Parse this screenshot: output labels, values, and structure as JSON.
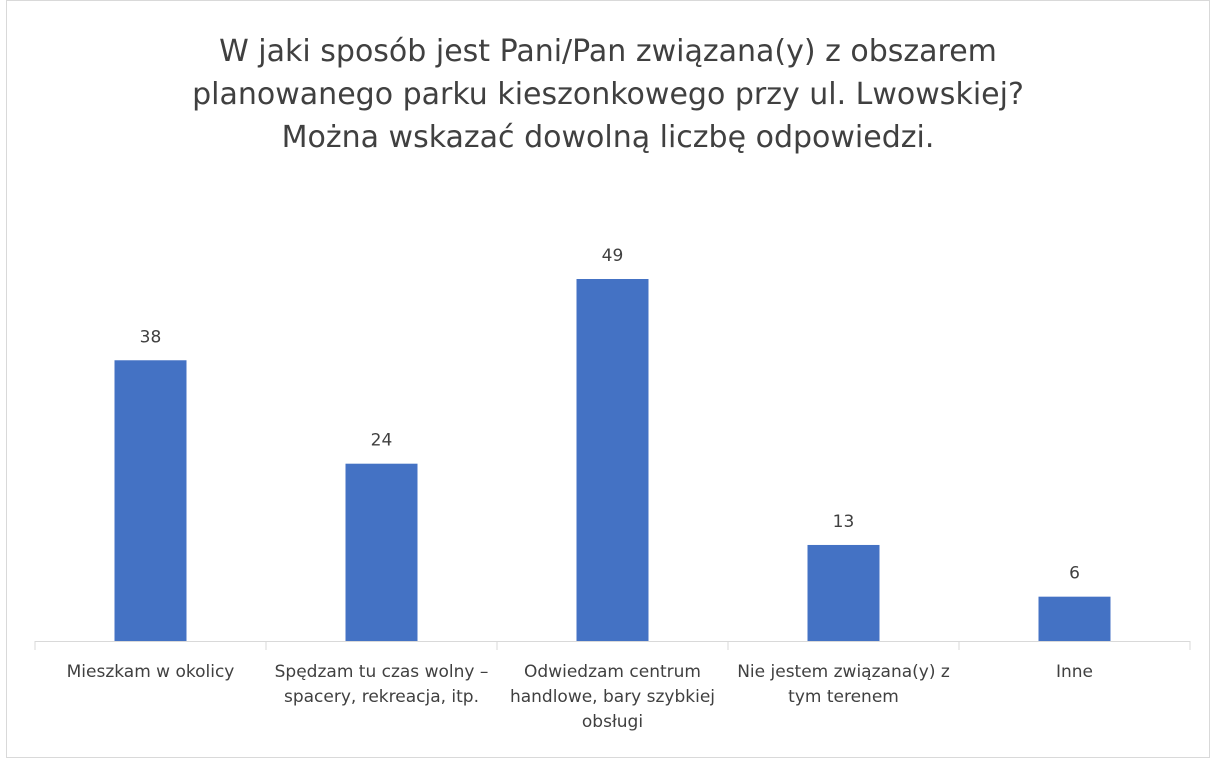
{
  "chart_data": {
    "type": "bar",
    "title": "W jaki sposób jest Pani/Pan związana(y) z obszarem planowanego parku kieszonkowego przy ul. Lwowskiej? Można wskazać dowolną liczbę odpowiedzi.",
    "categories": [
      "Mieszkam w okolicy",
      "Spędzam tu czas wolny – spacery, rekreacja, itp.",
      "Odwiedzam centrum handlowe, bary szybkiej obsługi",
      "Nie jestem związana(y) z tym terenem",
      "Inne"
    ],
    "values": [
      38,
      24,
      49,
      13,
      6
    ],
    "color": "#4472c4"
  }
}
